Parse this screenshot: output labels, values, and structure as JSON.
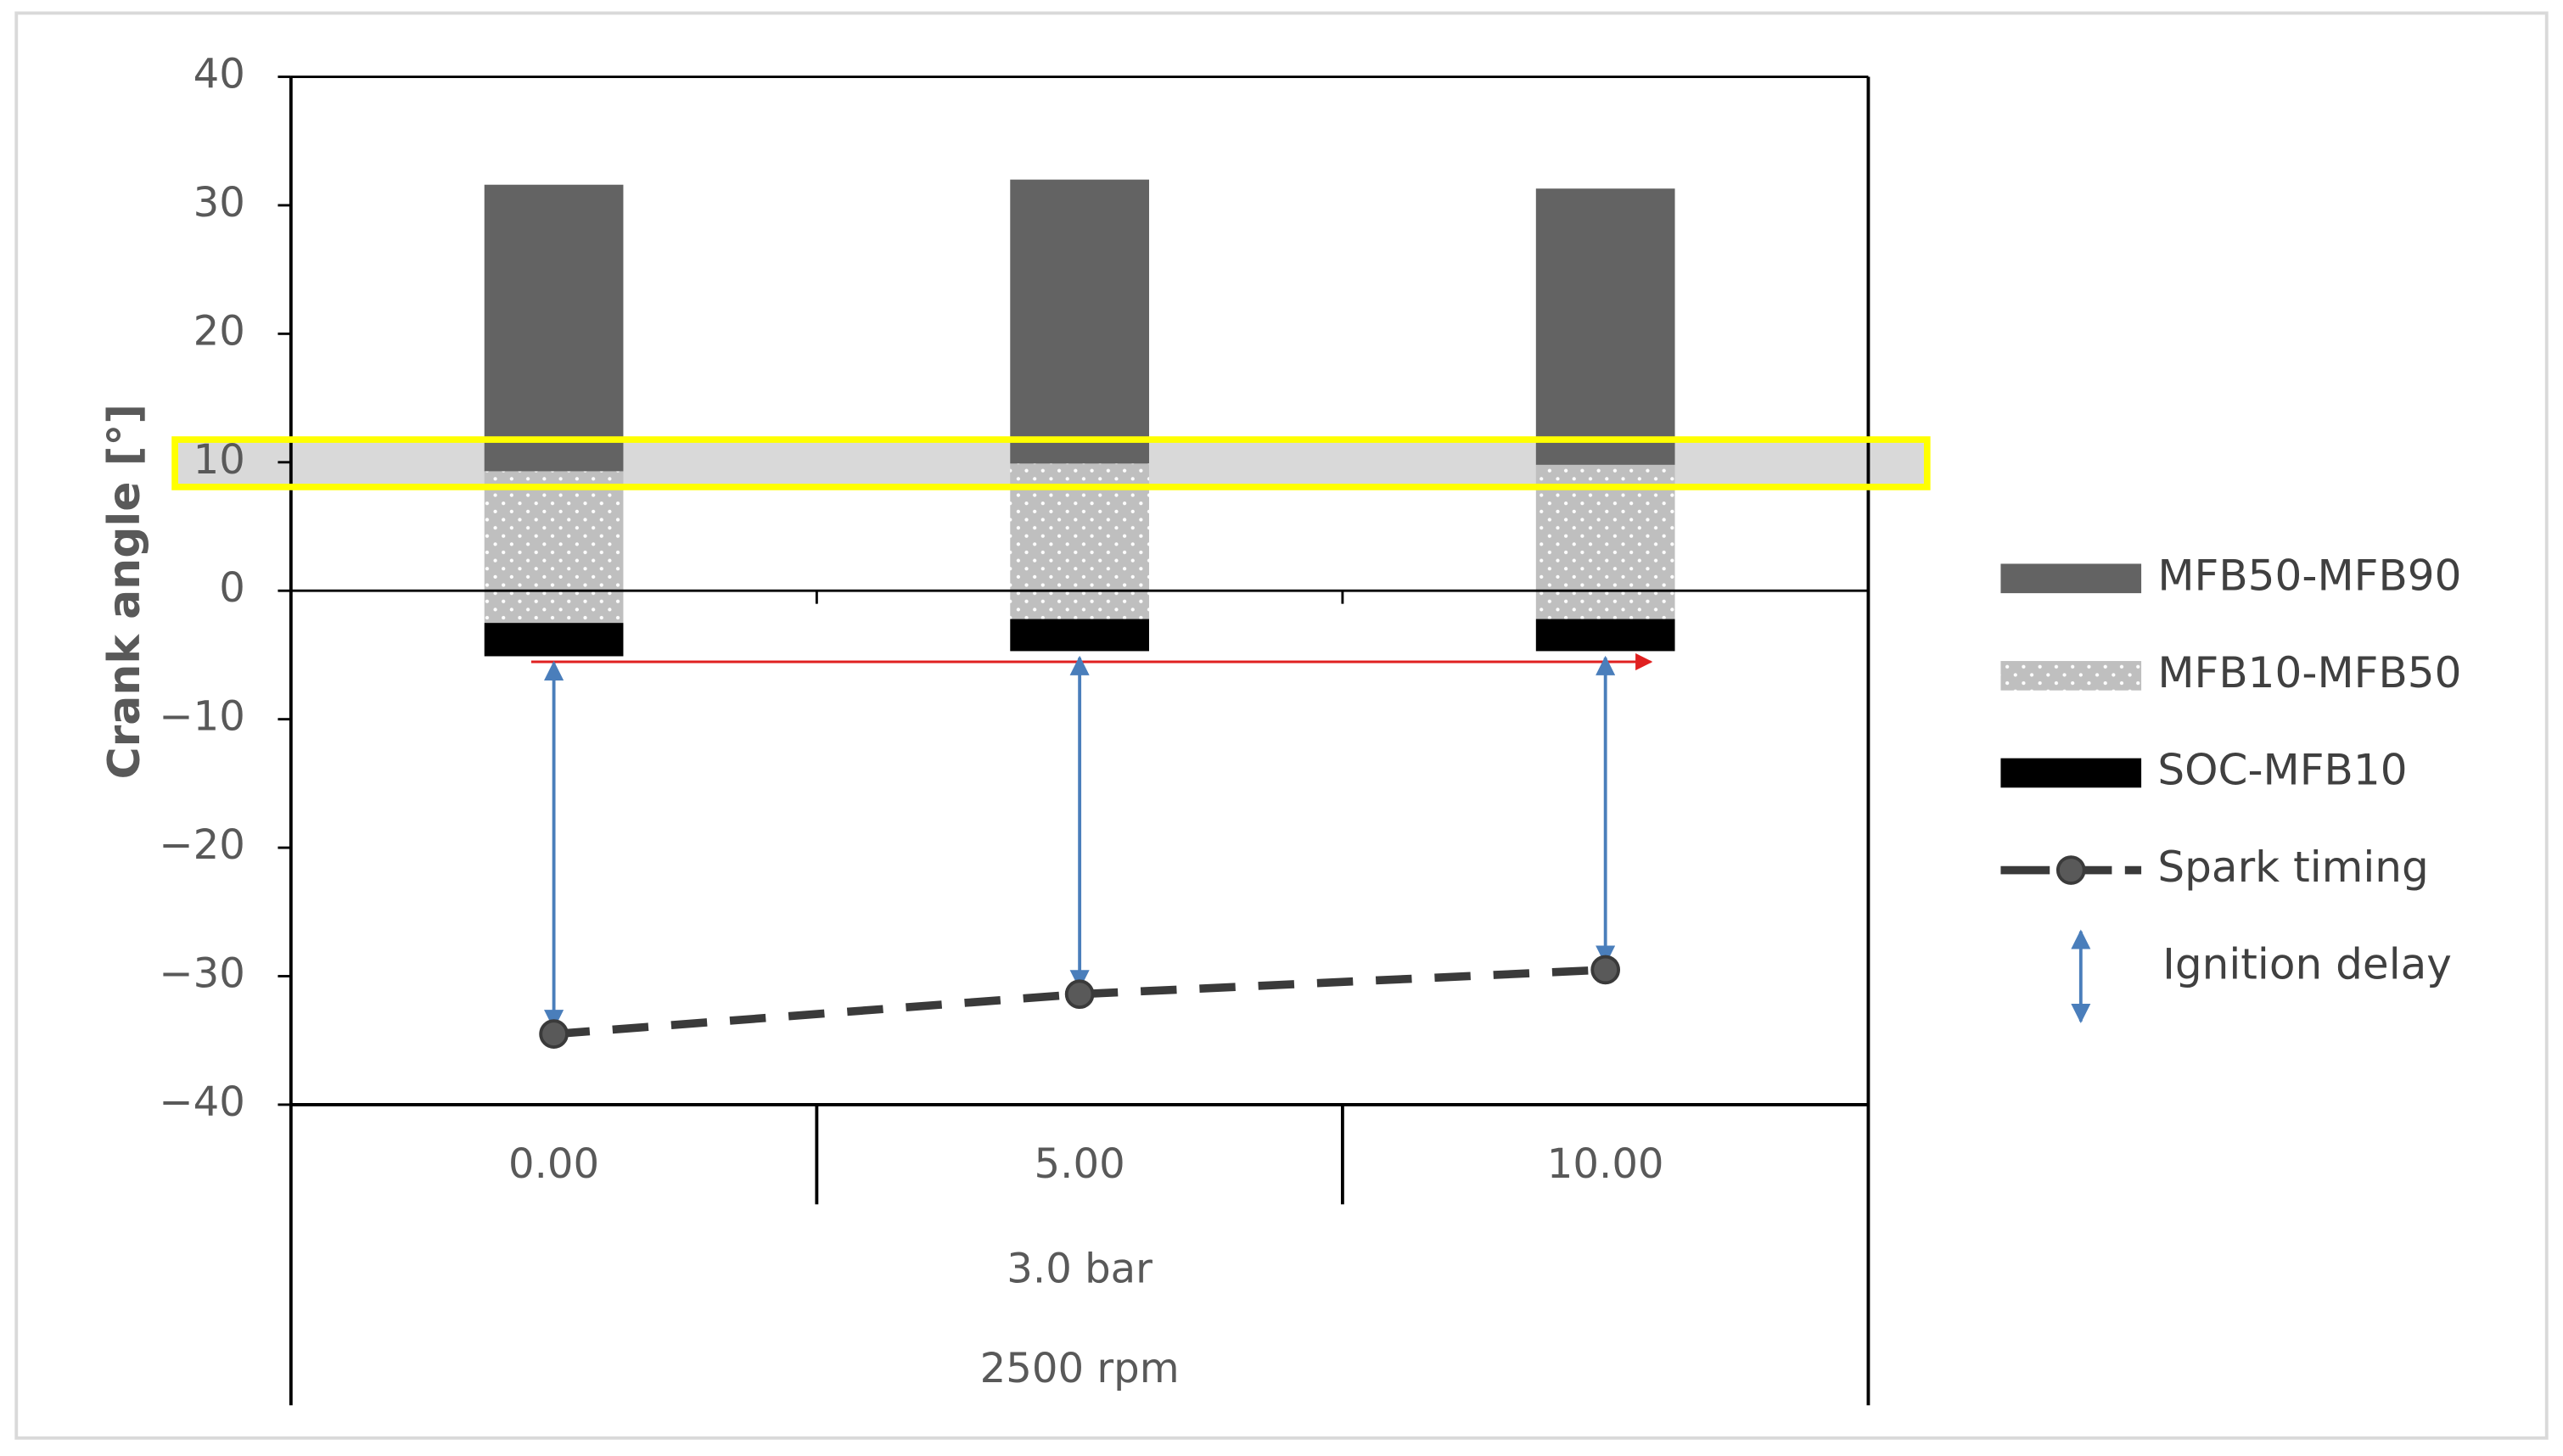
{
  "chart_data": {
    "type": "stacked_bar",
    "y_label": "Crank angle [°]",
    "categories": [
      "0.00",
      "5.00",
      "10.00"
    ],
    "group_labels": [
      "3.0 bar",
      "2500 rpm"
    ],
    "base": [
      -5.1,
      -4.7,
      -4.7
    ],
    "series": [
      {
        "name": "MFB50-MFB90",
        "color": "#636363",
        "values": [
          22.3,
          22.1,
          21.5
        ]
      },
      {
        "name": "MFB10-MFB50",
        "color": "#bfbfbf",
        "pattern": "dots",
        "values": [
          11.8,
          12.1,
          12.0
        ]
      },
      {
        "name": "SOC-MFB10",
        "color": "#000000",
        "values": [
          2.6,
          2.5,
          2.5
        ]
      },
      {
        "name": "Spark timing",
        "type": "line",
        "color": "#3a3a3a",
        "values": [
          -34.5,
          -31.4,
          -29.5
        ]
      }
    ],
    "annotation": "Ignition delay",
    "ylim": [
      -40,
      40
    ],
    "yticks": [
      {
        "value": -40,
        "label": "−40"
      },
      {
        "value": -30,
        "label": "−30"
      },
      {
        "value": -20,
        "label": "−20"
      },
      {
        "value": -10,
        "label": "−10"
      },
      0,
      10,
      20,
      30,
      40
    ]
  }
}
